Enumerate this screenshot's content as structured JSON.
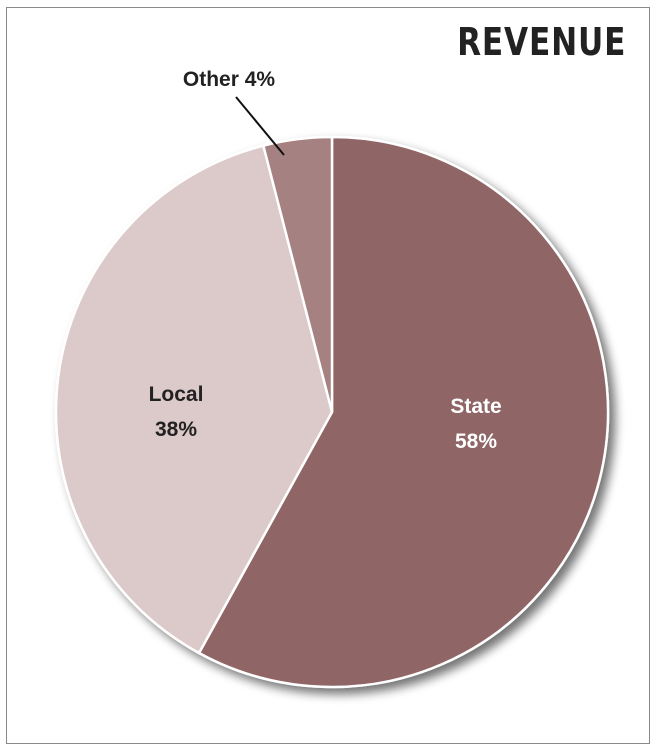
{
  "chart_data": {
    "type": "pie",
    "title": "REVENUE",
    "slices": [
      {
        "label": "State",
        "value": 58,
        "value_label": "58%",
        "color": "#8f6565",
        "text_color": "#ffffff"
      },
      {
        "label": "Local",
        "value": 38,
        "value_label": "38%",
        "color": "#dcc9c9",
        "text_color": "#222222"
      },
      {
        "label": "Other",
        "value": 4,
        "value_label": "Other 4%",
        "color": "#a68181",
        "text_color": "#222222"
      }
    ]
  }
}
